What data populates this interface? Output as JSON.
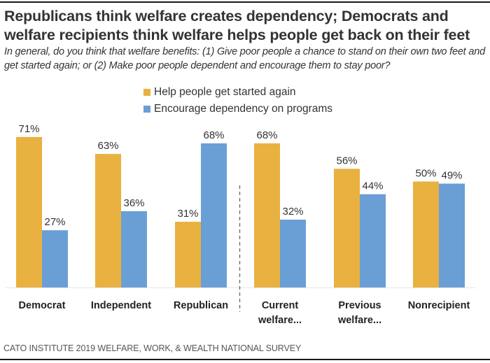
{
  "header": {
    "title": "Republicans think welfare creates dependency; Democrats and welfare recipients think welfare helps people get back on their feet",
    "subtitle": "In general, do you think that welfare benefits: (1) Give poor people a chance to stand on their own two feet and get started again; or (2) Make poor people dependent and encourage them to stay poor?"
  },
  "footer": {
    "source": "CATO INSTITUTE 2019 WELFARE, WORK, & WEALTH NATIONAL SURVEY"
  },
  "chart_data": {
    "type": "bar",
    "title": "Republicans think welfare creates dependency; Democrats and welfare recipients think welfare helps people get back on their feet",
    "xlabel": "",
    "ylabel": "",
    "ylim": [
      0,
      100
    ],
    "grid": false,
    "legend_position": "top-center",
    "categories": [
      [
        "Democrat"
      ],
      [
        "Independent"
      ],
      [
        "Republican"
      ],
      [
        "Current",
        "welfare..."
      ],
      [
        "Previous",
        "welfare..."
      ],
      [
        "Nonrecipient"
      ]
    ],
    "group_divider_after_index": 2,
    "series": [
      {
        "name": "Help people get started again",
        "color": "#E8B140",
        "values": [
          71,
          63,
          31,
          68,
          56,
          50
        ]
      },
      {
        "name": "Encourage dependency on programs",
        "color": "#6A9FD6",
        "values": [
          27,
          36,
          68,
          32,
          44,
          49
        ]
      }
    ],
    "value_suffix": "%"
  }
}
